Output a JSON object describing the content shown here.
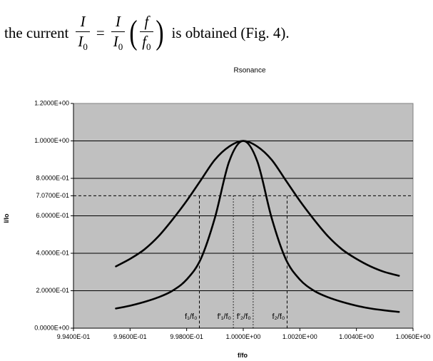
{
  "text": {
    "lead": "the current",
    "I": "I",
    "I0_base": "I",
    "I0_sub": "0",
    "equals": "=",
    "f": "f",
    "f0_base": "f",
    "f0_sub": "0",
    "tail": "is obtained (Fig. 4)."
  },
  "chart_data": {
    "type": "line",
    "title": "Rsonance",
    "xlabel": "f/fo",
    "ylabel": "I/Io",
    "xlim": [
      0.994,
      1.006
    ],
    "ylim": [
      0,
      1.2
    ],
    "x_ticks": [
      0.994,
      0.996,
      0.998,
      1.0,
      1.002,
      1.004,
      1.006
    ],
    "x_tick_labels": [
      "9.9400E-01",
      "9.9600E-01",
      "9.9800E-01",
      "1.0000E+00",
      "1.0020E+00",
      "1.0040E+00",
      "1.0060E+00"
    ],
    "y_ticks": [
      0,
      0.2,
      0.4,
      0.6,
      0.707,
      0.8,
      1.0,
      1.2
    ],
    "y_tick_labels": [
      "0.0000E+00",
      "2.0000E-01",
      "4.0000E-01",
      "6.0000E-01",
      "7.0700E-01",
      "8.0000E-01",
      "1.0000E+00",
      "1.2000E+00"
    ],
    "grid": true,
    "background": "#c0c0c0",
    "threshold": {
      "y": 0.707,
      "style": "dashed"
    },
    "series": [
      {
        "x": [
          0.9955,
          0.996,
          0.9965,
          0.997,
          0.9975,
          0.998,
          0.9985,
          0.999,
          0.9995,
          1.0,
          1.0005,
          1.001,
          1.0015,
          1.002,
          1.0025,
          1.003,
          1.0035,
          1.004,
          1.0045,
          1.005,
          1.0055
        ],
        "y": [
          0.33,
          0.37,
          0.42,
          0.49,
          0.58,
          0.68,
          0.79,
          0.9,
          0.97,
          1.0,
          0.97,
          0.9,
          0.79,
          0.68,
          0.58,
          0.49,
          0.42,
          0.37,
          0.33,
          0.3,
          0.28
        ]
      },
      {
        "x": [
          0.9955,
          0.996,
          0.9965,
          0.997,
          0.9975,
          0.998,
          0.9985,
          0.999,
          0.9995,
          1.0,
          1.0005,
          1.001,
          1.0015,
          1.002,
          1.0025,
          1.003,
          1.0035,
          1.004,
          1.0045,
          1.005,
          1.0055
        ],
        "y": [
          0.105,
          0.12,
          0.14,
          0.165,
          0.2,
          0.26,
          0.37,
          0.59,
          0.89,
          1.0,
          0.89,
          0.59,
          0.37,
          0.26,
          0.2,
          0.165,
          0.14,
          0.12,
          0.105,
          0.095,
          0.087
        ]
      }
    ],
    "markers": [
      {
        "x": 0.99845,
        "label": "f₁/f₀",
        "style": "dashed"
      },
      {
        "x": 0.99965,
        "label": "f′₁/f₀",
        "style": "dotted"
      },
      {
        "x": 1.00035,
        "label": "f′₂/f₀",
        "style": "dotted"
      },
      {
        "x": 1.00155,
        "label": "f₂/f₀",
        "style": "dashed"
      }
    ]
  }
}
